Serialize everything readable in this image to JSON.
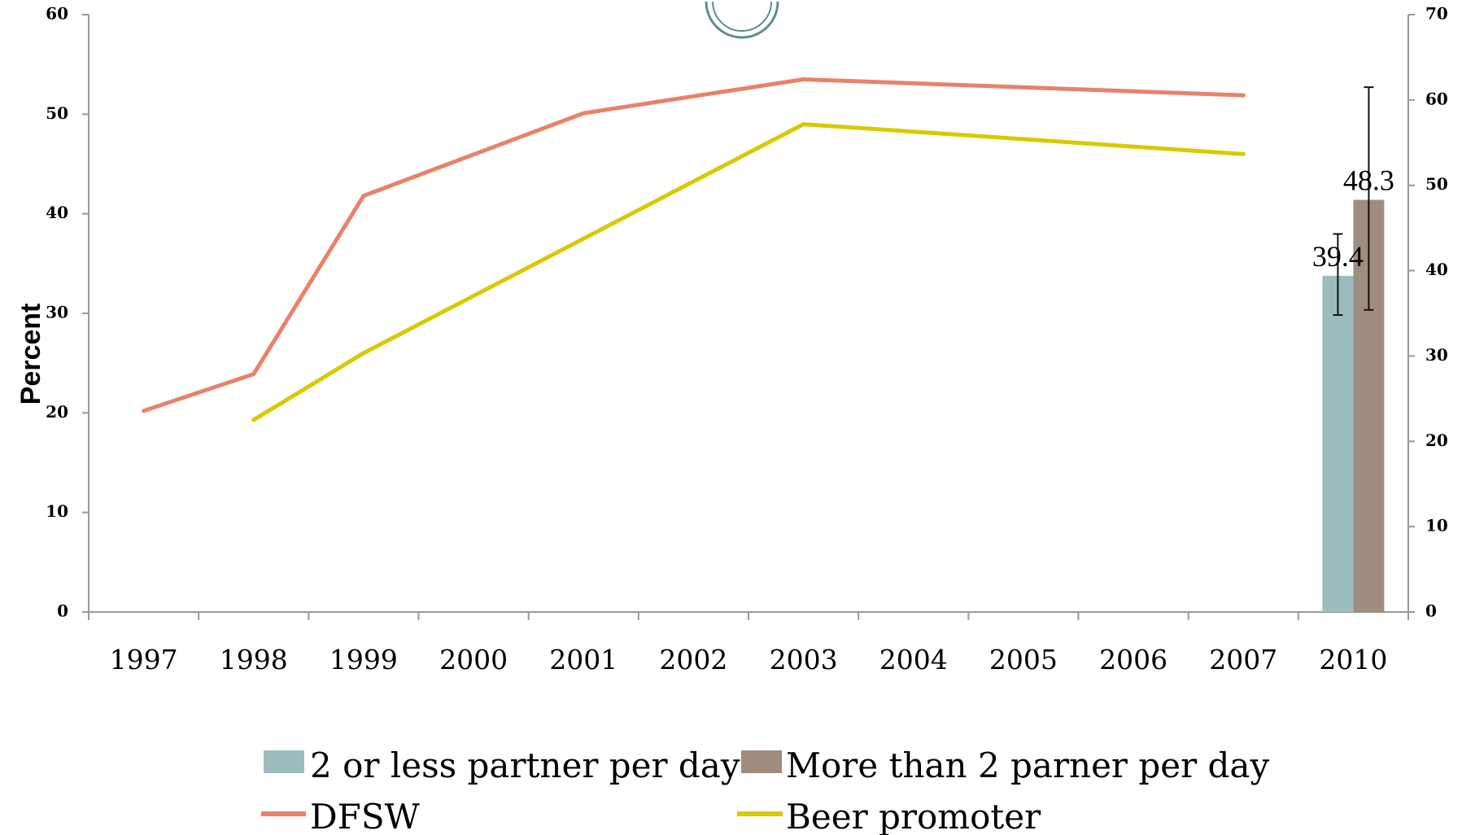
{
  "chart_data": {
    "type": "line",
    "categories": [
      "1997",
      "1998",
      "1999",
      "2000",
      "2001",
      "2002",
      "2003",
      "2004",
      "2005",
      "2006",
      "2007",
      "2010"
    ],
    "ylabel": "Percent",
    "y_left": {
      "range": [
        0,
        60
      ],
      "ticks": [
        "0",
        "10",
        "20",
        "30",
        "40",
        "50",
        "60"
      ]
    },
    "y_right": {
      "range": [
        0,
        70
      ],
      "ticks": [
        "0",
        "10",
        "20",
        "30",
        "40",
        "50",
        "60",
        "70"
      ]
    },
    "line_series": [
      {
        "name": "DFSW",
        "color": "#e8826a",
        "axis": "left",
        "points": [
          {
            "x": "1997",
            "y": 20.2
          },
          {
            "x": "1998",
            "y": 23.9
          },
          {
            "x": "1999",
            "y": 41.8
          },
          {
            "x": "2001",
            "y": 50.1
          },
          {
            "x": "2003",
            "y": 53.5
          },
          {
            "x": "2007",
            "y": 51.9
          }
        ]
      },
      {
        "name": "Beer promoter",
        "color": "#d8c900",
        "axis": "left",
        "points": [
          {
            "x": "1998",
            "y": 19.3
          },
          {
            "x": "1999",
            "y": 26.0
          },
          {
            "x": "2003",
            "y": 49.0
          },
          {
            "x": "2007",
            "y": 46.0
          }
        ]
      }
    ],
    "bar_series": [
      {
        "name": "2 or less partner per day",
        "color": "#9dbcbd",
        "axis": "right",
        "category": "2010",
        "value": 39.4,
        "label": "39.4",
        "error": [
          34.8,
          44.3
        ]
      },
      {
        "name": "More than 2 parner per day",
        "color": "#a08d80",
        "axis": "right",
        "category": "2010",
        "value": 48.3,
        "label": "48.3",
        "error": [
          35.4,
          61.5
        ]
      }
    ],
    "legend": {
      "placement": "bottom",
      "items": [
        {
          "label": "2 or less partner per day",
          "kind": "box",
          "color": "#9dbcbd"
        },
        {
          "label": "More than 2 parner per day",
          "kind": "box",
          "color": "#a08d80"
        },
        {
          "label": "DFSW",
          "kind": "line",
          "color": "#e8826a"
        },
        {
          "label": "Beer promoter",
          "kind": "line",
          "color": "#d8c900"
        }
      ]
    },
    "grid": false
  }
}
